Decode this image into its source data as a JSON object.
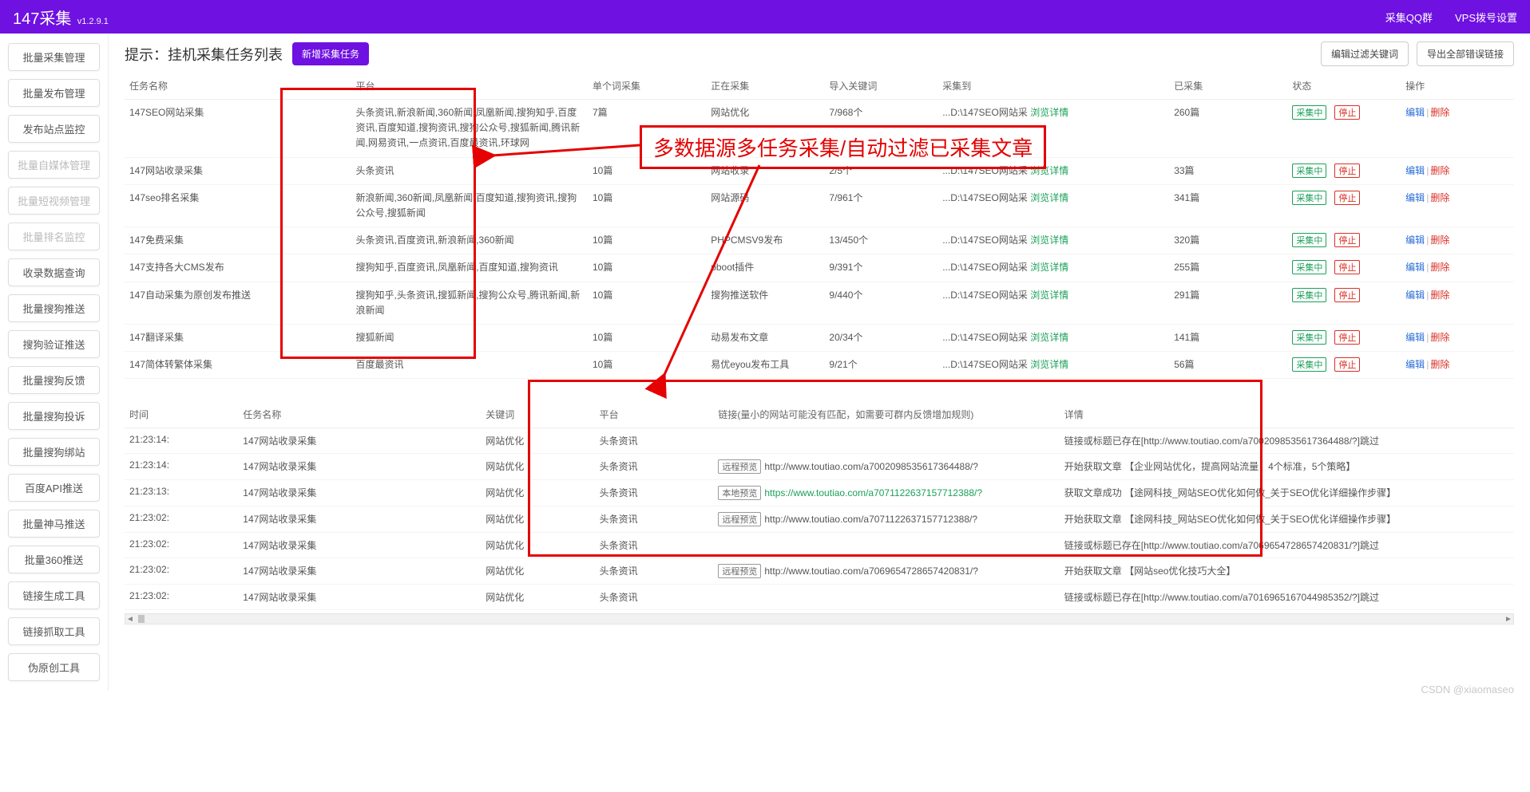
{
  "app": {
    "name": "147采集",
    "version": "v1.2.9.1"
  },
  "topnav": {
    "qq_group": "采集QQ群",
    "vps_dial": "VPS拨号设置"
  },
  "sidebar": [
    {
      "label": "批量采集管理",
      "disabled": false
    },
    {
      "label": "批量发布管理",
      "disabled": false
    },
    {
      "label": "发布站点监控",
      "disabled": false
    },
    {
      "label": "批量自媒体管理",
      "disabled": true
    },
    {
      "label": "批量短视频管理",
      "disabled": true
    },
    {
      "label": "批量排名监控",
      "disabled": true
    },
    {
      "label": "收录数据查询",
      "disabled": false
    },
    {
      "label": "批量搜狗推送",
      "disabled": false
    },
    {
      "label": "搜狗验证推送",
      "disabled": false
    },
    {
      "label": "批量搜狗反馈",
      "disabled": false
    },
    {
      "label": "批量搜狗投诉",
      "disabled": false
    },
    {
      "label": "批量搜狗绑站",
      "disabled": false
    },
    {
      "label": "百度API推送",
      "disabled": false
    },
    {
      "label": "批量神马推送",
      "disabled": false
    },
    {
      "label": "批量360推送",
      "disabled": false
    },
    {
      "label": "链接生成工具",
      "disabled": false
    },
    {
      "label": "链接抓取工具",
      "disabled": false
    },
    {
      "label": "伪原创工具",
      "disabled": false
    }
  ],
  "page": {
    "title": "提示：挂机采集任务列表",
    "new_task": "新增采集任务",
    "filter_btn": "编辑过滤关键词",
    "export_btn": "导出全部错误链接"
  },
  "task_columns": [
    "任务名称",
    "平台",
    "单个词采集",
    "正在采集",
    "导入关键词",
    "采集到",
    "已采集",
    "状态",
    "操作"
  ],
  "status_tags": {
    "running": "采集中",
    "stop": "停止"
  },
  "op_labels": {
    "edit": "编辑",
    "delete": "删除"
  },
  "browse_detail": "浏览详情",
  "collect_path_prefix": "...D:\\147SEO网站采",
  "task_cols_width": [
    220,
    230,
    115,
    115,
    110,
    225,
    115,
    110,
    110
  ],
  "tasks": [
    {
      "name": "147SEO网站采集",
      "platform": "头条资讯,新浪新闻,360新闻,凤凰新闻,搜狗知乎,百度资讯,百度知道,搜狗资讯,搜狗公众号,搜狐新闻,腾讯新闻,网易资讯,一点资讯,百度最资讯,环球网",
      "per": "7篇",
      "running": "网站优化",
      "imported": "7/968个",
      "collected": "260篇"
    },
    {
      "name": "147网站收录采集",
      "platform": "头条资讯",
      "per": "10篇",
      "running": "网站收录",
      "imported": "2/5个",
      "collected": "33篇"
    },
    {
      "name": "147seo排名采集",
      "platform": "新浪新闻,360新闻,凤凰新闻,百度知道,搜狗资讯,搜狗公众号,搜狐新闻",
      "per": "10篇",
      "running": "网站源码",
      "imported": "7/961个",
      "collected": "341篇"
    },
    {
      "name": "147免费采集",
      "platform": "头条资讯,百度资讯,新浪新闻,360新闻",
      "per": "10篇",
      "running": "PHPCMSV9发布",
      "imported": "13/450个",
      "collected": "320篇"
    },
    {
      "name": "147支持各大CMS发布",
      "platform": "搜狗知乎,百度资讯,凤凰新闻,百度知道,搜狗资讯",
      "per": "10篇",
      "running": "pboot插件",
      "imported": "9/391个",
      "collected": "255篇"
    },
    {
      "name": "147自动采集为原创发布推送",
      "platform": "搜狗知乎,头条资讯,搜狐新闻,搜狗公众号,腾讯新闻,新浪新闻",
      "per": "10篇",
      "running": "搜狗推送软件",
      "imported": "9/440个",
      "collected": "291篇"
    },
    {
      "name": "147翻译采集",
      "platform": "搜狐新闻",
      "per": "10篇",
      "running": "动易发布文章",
      "imported": "20/34个",
      "collected": "141篇"
    },
    {
      "name": "147简体转繁体采集",
      "platform": "百度最资讯",
      "per": "10篇",
      "running": "易优eyou发布工具",
      "imported": "9/21个",
      "collected": "56篇"
    }
  ],
  "log_columns": [
    "时间",
    "任务名称",
    "关键词",
    "平台",
    "链接(量小的网站可能没有匹配，如需要可群内反馈增加规则)",
    "详情"
  ],
  "log_cols_width": [
    110,
    235,
    110,
    115,
    335,
    440
  ],
  "log_link_tags": {
    "remote": "远程预览",
    "local": "本地预览"
  },
  "logs": [
    {
      "time": "21:23:14:",
      "task": "147网站收录采集",
      "kw": "网站优化",
      "plat": "头条资讯",
      "tag": "",
      "url": "",
      "green": false,
      "detail": "链接或标题已存在[http://www.toutiao.com/a7002098535617364488/?]跳过"
    },
    {
      "time": "21:23:14:",
      "task": "147网站收录采集",
      "kw": "网站优化",
      "plat": "头条资讯",
      "tag": "remote",
      "url": "http://www.toutiao.com/a7002098535617364488/?",
      "green": false,
      "detail": "开始获取文章 【企业网站优化，提高网站流量，4个标准，5个策略】"
    },
    {
      "time": "21:23:13:",
      "task": "147网站收录采集",
      "kw": "网站优化",
      "plat": "头条资讯",
      "tag": "local",
      "url": "https://www.toutiao.com/a7071122637157712388/?",
      "green": true,
      "detail": "获取文章成功 【途网科技_网站SEO优化如何做_关于SEO优化详细操作步骤】"
    },
    {
      "time": "21:23:02:",
      "task": "147网站收录采集",
      "kw": "网站优化",
      "plat": "头条资讯",
      "tag": "remote",
      "url": "http://www.toutiao.com/a7071122637157712388/?",
      "green": false,
      "detail": "开始获取文章 【途网科技_网站SEO优化如何做_关于SEO优化详细操作步骤】"
    },
    {
      "time": "21:23:02:",
      "task": "147网站收录采集",
      "kw": "网站优化",
      "plat": "头条资讯",
      "tag": "",
      "url": "",
      "green": false,
      "detail": "链接或标题已存在[http://www.toutiao.com/a7069654728657420831/?]跳过"
    },
    {
      "time": "21:23:02:",
      "task": "147网站收录采集",
      "kw": "网站优化",
      "plat": "头条资讯",
      "tag": "remote",
      "url": "http://www.toutiao.com/a7069654728657420831/?",
      "green": false,
      "detail": "开始获取文章 【网站seo优化技巧大全】"
    },
    {
      "time": "21:23:02:",
      "task": "147网站收录采集",
      "kw": "网站优化",
      "plat": "头条资讯",
      "tag": "",
      "url": "",
      "green": false,
      "detail": "链接或标题已存在[http://www.toutiao.com/a7016965167044985352/?]跳过"
    }
  ],
  "annotation": {
    "text": "多数据源多任务采集/自动过滤已采集文章"
  },
  "watermark": "CSDN @xiaomaseo"
}
